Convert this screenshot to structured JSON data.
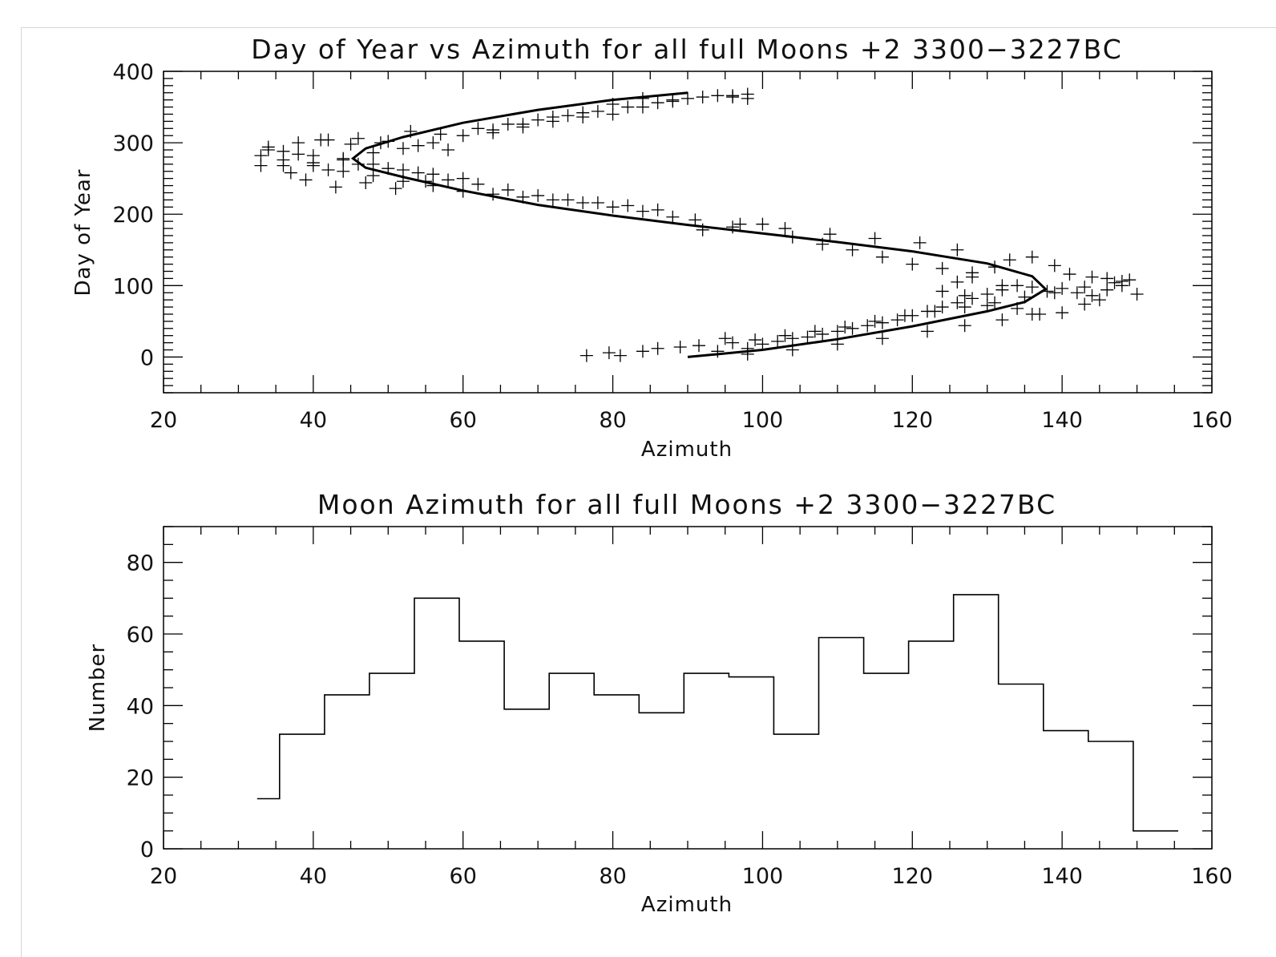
{
  "chart_data": [
    {
      "type": "scatter",
      "title": "Day of Year vs Azimuth for all full Moons +2 3300−3227BC",
      "xlabel": "Azimuth",
      "ylabel": "Day of Year",
      "xlim": [
        20,
        160
      ],
      "ylim": [
        -50,
        400
      ],
      "x_ticks": [
        "20",
        "40",
        "60",
        "80",
        "100",
        "120",
        "140",
        "160"
      ],
      "y_ticks": [
        "0",
        "100",
        "200",
        "300",
        "400"
      ],
      "marker": "plus",
      "grid": false,
      "fit_curve": {
        "description": "sinusoidal seasonal track",
        "x": [
          90,
          100,
          110,
          120,
          130,
          135,
          137.8,
          136,
          130,
          120,
          110,
          100,
          90,
          80,
          70,
          60,
          52,
          47,
          45.3,
          47,
          52,
          60,
          70,
          80,
          90
        ],
        "y": [
          0,
          10,
          25,
          43,
          64,
          77,
          95,
          113,
          131,
          148,
          161,
          173,
          185,
          198,
          213,
          233,
          252,
          265,
          278,
          292,
          308,
          328,
          346,
          360,
          370
        ]
      },
      "series": [
        {
          "x": [
            76.5,
            79.5,
            81.0,
            84,
            86,
            89,
            91.5,
            94,
            96,
            98,
            100,
            102,
            104,
            106,
            108,
            110,
            112,
            114,
            116,
            118,
            120,
            122,
            124,
            126,
            128,
            130,
            132,
            134,
            136,
            138,
            140,
            142,
            144,
            146,
            148,
            150,
            95,
            99,
            103,
            107,
            111,
            115,
            119,
            123,
            127,
            131,
            135,
            139,
            143,
            147,
            149,
            126,
            128,
            131,
            133,
            136,
            139,
            141,
            144,
            146,
            148,
            124,
            127,
            130,
            134,
            137,
            140,
            143,
            145,
            98,
            104,
            110,
            116,
            122,
            127,
            132,
            136,
            126,
            121,
            115,
            109,
            103,
            97,
            91,
            88,
            84,
            80,
            76,
            72,
            68,
            64,
            60,
            56,
            52,
            48,
            44,
            40,
            36,
            33,
            86,
            82,
            78,
            74,
            70,
            66,
            62,
            58,
            54,
            50,
            46,
            42,
            38,
            34,
            60,
            56,
            52,
            48,
            44,
            40,
            36,
            34,
            38,
            42,
            46,
            50,
            54,
            58,
            62,
            66,
            70,
            74,
            78,
            82,
            86,
            90,
            94,
            96,
            98,
            57,
            53,
            49,
            45,
            41,
            37,
            33,
            39,
            43,
            47,
            51,
            55,
            64,
            68,
            72,
            76,
            80,
            84,
            88,
            92,
            96,
            100,
            104,
            108,
            112,
            116,
            120,
            124,
            128,
            132,
            36,
            40,
            44,
            48,
            52,
            56,
            60,
            64,
            68,
            72,
            76,
            80,
            84,
            88,
            92,
            96,
            98
          ],
          "y": [
            2,
            6,
            2,
            8,
            12,
            14,
            16,
            8,
            20,
            12,
            18,
            22,
            26,
            28,
            32,
            36,
            40,
            44,
            48,
            52,
            58,
            64,
            70,
            76,
            82,
            88,
            94,
            100,
            98,
            92,
            96,
            90,
            86,
            94,
            100,
            88,
            26,
            24,
            30,
            36,
            42,
            50,
            58,
            64,
            70,
            76,
            84,
            90,
            98,
            104,
            108,
            105,
            118,
            126,
            136,
            140,
            128,
            116,
            112,
            110,
            106,
            92,
            86,
            72,
            68,
            60,
            62,
            74,
            80,
            4,
            10,
            18,
            26,
            36,
            44,
            52,
            60,
            150,
            160,
            166,
            172,
            180,
            186,
            192,
            196,
            204,
            210,
            216,
            220,
            224,
            228,
            232,
            240,
            246,
            254,
            260,
            268,
            276,
            282,
            206,
            212,
            216,
            220,
            226,
            234,
            242,
            248,
            258,
            264,
            270,
            262,
            284,
            290,
            250,
            256,
            262,
            270,
            276,
            282,
            288,
            294,
            300,
            304,
            306,
            302,
            296,
            290,
            320,
            326,
            332,
            338,
            344,
            350,
            356,
            362,
            366,
            364,
            368,
            312,
            316,
            300,
            298,
            304,
            258,
            268,
            248,
            238,
            244,
            236,
            246,
            314,
            322,
            330,
            336,
            340,
            350,
            358,
            178,
            182,
            186,
            168,
            158,
            150,
            140,
            130,
            124,
            112,
            100,
            268,
            272,
            278,
            286,
            292,
            300,
            310,
            318,
            326,
            336,
            342,
            354,
            362,
            360,
            364,
            366,
            362
          ]
        }
      ]
    },
    {
      "type": "bar",
      "subtype": "histogram",
      "title": "Moon Azimuth for all full Moons +2 3300−3227BC",
      "xlabel": "Azimuth",
      "ylabel": "Number",
      "xlim": [
        20,
        160
      ],
      "ylim": [
        0,
        90
      ],
      "x_ticks": [
        "20",
        "40",
        "60",
        "80",
        "100",
        "120",
        "140",
        "160"
      ],
      "y_ticks": [
        "0",
        "20",
        "40",
        "60",
        "80"
      ],
      "bin_edges": [
        32.5,
        35.5,
        41.5,
        47.5,
        53.5,
        59.5,
        65.5,
        71.5,
        77.5,
        83.5,
        89.5,
        95.5,
        101.5,
        107.5,
        113.5,
        119.5,
        125.5,
        131.5,
        137.5,
        143.5,
        149.5,
        155.5
      ],
      "values": [
        14,
        32,
        43,
        49,
        70,
        58,
        39,
        49,
        43,
        38,
        49,
        48,
        32,
        59,
        49,
        58,
        71,
        46,
        33,
        30,
        5
      ],
      "grid": false
    }
  ]
}
